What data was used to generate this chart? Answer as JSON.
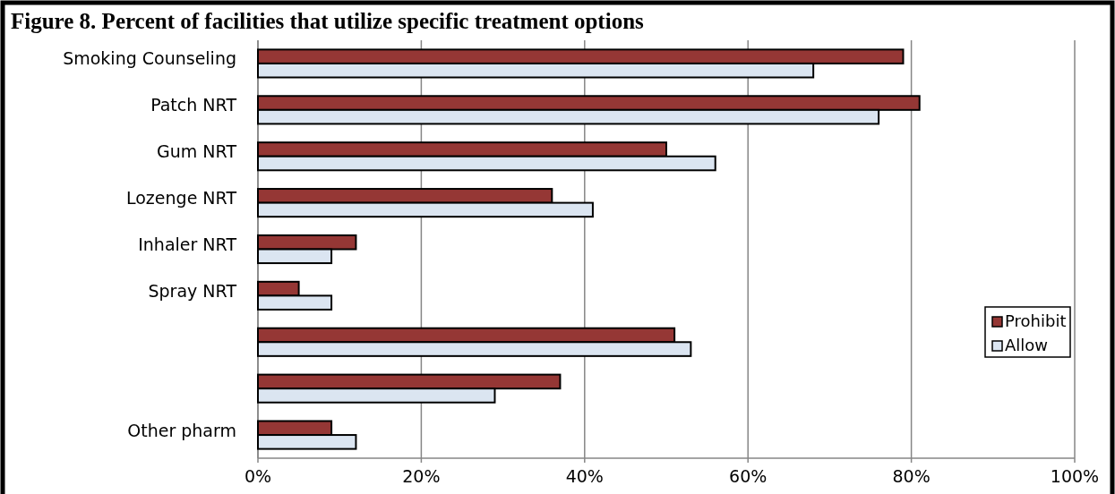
{
  "chart_data": {
    "type": "bar",
    "orientation": "horizontal",
    "title": "Figure 8. Percent of facilities that utilize specific treatment options",
    "categories": [
      "Smoking Counseling",
      "Patch NRT",
      "Gum NRT",
      "Lozenge NRT",
      "Inhaler NRT",
      "Spray NRT",
      null,
      null,
      "Other pharm"
    ],
    "series": [
      {
        "name": "Prohibit",
        "color": "#953735",
        "values": [
          79,
          81,
          50,
          36,
          12,
          5,
          51,
          37,
          9
        ]
      },
      {
        "name": "Allow",
        "color": "#dbe5f1",
        "values": [
          68,
          76,
          56,
          41,
          9,
          9,
          53,
          29,
          12
        ]
      }
    ],
    "xlim": [
      0,
      100
    ],
    "xticks": [
      {
        "value": 0,
        "label": "0%"
      },
      {
        "value": 20,
        "label": "20%"
      },
      {
        "value": 40,
        "label": "40%"
      },
      {
        "value": 60,
        "label": "60%"
      },
      {
        "value": 80,
        "label": "80%"
      },
      {
        "value": 100,
        "label": "100%"
      }
    ],
    "grid": "x",
    "legend": "right"
  }
}
